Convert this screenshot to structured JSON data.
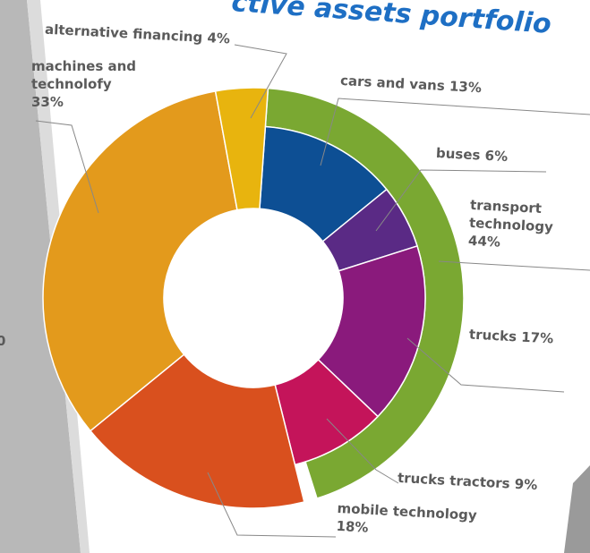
{
  "chart_data": {
    "type": "pie",
    "title": "ctive assets portfolio",
    "fragments": [
      "0"
    ],
    "categories": [
      "cars and vans",
      "buses",
      "trucks",
      "trucks tractors",
      "mobile technology",
      "machines and technolofy",
      "alternative financing"
    ],
    "values": [
      13,
      6,
      17,
      9,
      18,
      33,
      4
    ],
    "value_labels": [
      "13%",
      "6%",
      "17%",
      "9%",
      "18%",
      "33%",
      "4%"
    ],
    "colors": [
      "#0d4f94",
      "#5a2a85",
      "#8a1a7c",
      "#c4145a",
      "#d9501e",
      "#e39a1c",
      "#e8b40e"
    ],
    "outer": {
      "name": "transport technology",
      "value": 44,
      "value_label": "44%",
      "color": "#7aa832"
    }
  }
}
